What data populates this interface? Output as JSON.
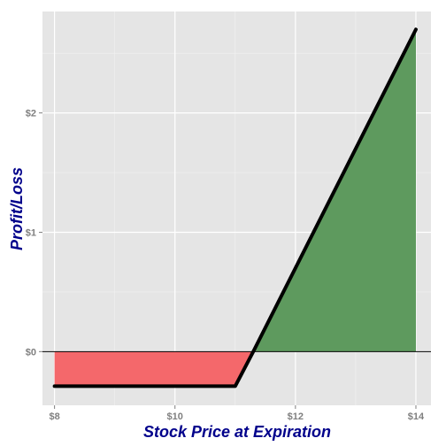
{
  "chart_data": {
    "type": "area",
    "title": "",
    "xlabel": "Stock Price at Expiration",
    "ylabel": "Profit/Loss",
    "xlim": [
      7.8,
      14.25
    ],
    "ylim": [
      -0.45,
      2.85
    ],
    "x_ticks": [
      8,
      10,
      12,
      14
    ],
    "x_tick_labels": [
      "$8",
      "$10",
      "$12",
      "$14"
    ],
    "y_ticks": [
      0,
      1,
      2
    ],
    "y_tick_labels": [
      "$0",
      "$1",
      "$2"
    ],
    "grid": true,
    "legend": "none",
    "series": [
      {
        "x": [
          8,
          11,
          11.3,
          14
        ],
        "y": [
          -0.29,
          -0.29,
          0,
          2.7
        ]
      }
    ],
    "colors": {
      "panel": "#e5e5e5",
      "grid_major": "#ffffff",
      "grid_minor": "#f2f2f2",
      "loss_fill": "#f4686b",
      "profit_fill": "#5e9a5e",
      "line": "#000000",
      "zero_line": "#000000"
    }
  }
}
